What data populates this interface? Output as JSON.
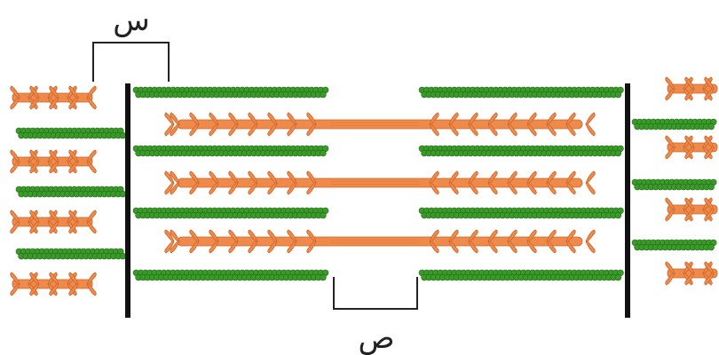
{
  "labels": {
    "top": "س",
    "bottom": "ص"
  },
  "colors": {
    "actin_fill": "#3a9a2a",
    "actin_stroke": "#1f6a12",
    "myosin_fill": "#f08a4b",
    "myosin_stroke": "#c9652c",
    "z_line": "#111111",
    "bracket": "#222222"
  },
  "structures": {
    "z_line": "Z-line",
    "actin": "actin-filament",
    "myosin": "myosin-filament"
  }
}
